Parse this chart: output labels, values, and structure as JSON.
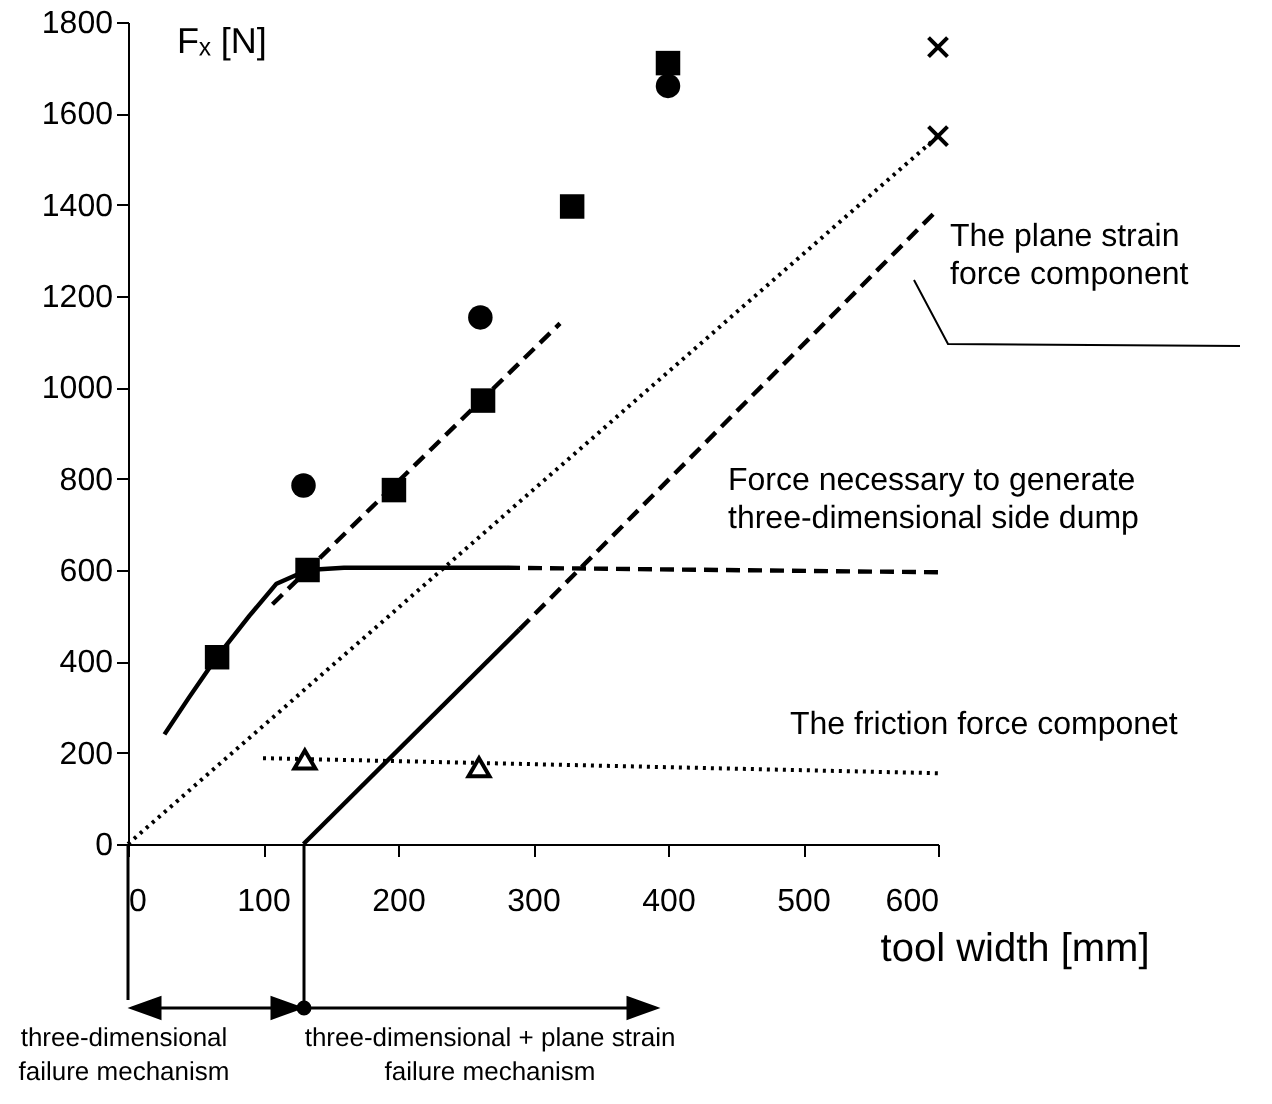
{
  "chart_data": {
    "type": "scatter",
    "xlabel": "tool width [mm]",
    "ylabel": "Fₓ [N]",
    "xlim": [
      0,
      600
    ],
    "ylim": [
      0,
      1800
    ],
    "xticks": [
      0,
      100,
      200,
      300,
      400,
      500,
      600
    ],
    "yticks": [
      0,
      200,
      400,
      600,
      800,
      1000,
      1200,
      1400,
      1600,
      1800
    ],
    "grid": false,
    "annotations": [
      "The plane strain\nforce component",
      "Force necessary to generate\nthree-dimensional side dump",
      "The friction force componet",
      "three-dimensional\nfailure mechanism",
      "three-dimensional + plane strain\nfailure mechanism"
    ],
    "series": [
      {
        "type": "line",
        "color": "#000000",
        "line_style": "solid",
        "x": [
          27,
          45,
          66,
          90,
          110,
          133,
          160,
          200,
          280
        ],
        "values": [
          240,
          320,
          410,
          500,
          570,
          600,
          605,
          605,
          605
        ]
      },
      {
        "type": "line",
        "color": "#000000",
        "line_style": "dashed",
        "x": [
          280,
          600
        ],
        "values": [
          605,
          595
        ]
      },
      {
        "type": "line",
        "color": "#000000",
        "line_style": "dashed",
        "x": [
          107,
          320
        ],
        "values": [
          525,
          1140
        ]
      },
      {
        "type": "line",
        "color": "#000000",
        "line_style": "dotted",
        "x": [
          0,
          600
        ],
        "values": [
          0,
          1550
        ]
      },
      {
        "type": "line",
        "color": "#000000",
        "line_style": "solid",
        "x": [
          130,
          290
        ],
        "values": [
          0,
          470
        ]
      },
      {
        "type": "line",
        "color": "#000000",
        "line_style": "dashed",
        "x": [
          290,
          600
        ],
        "values": [
          470,
          1390
        ]
      },
      {
        "type": "line",
        "color": "#000000",
        "line_style": "dotted",
        "x": [
          100,
          600
        ],
        "values": [
          188,
          155
        ]
      },
      {
        "color": "#000000",
        "marker": "square",
        "x": [
          66,
          133,
          197,
          263,
          329,
          400
        ],
        "values": [
          409,
          600,
          775,
          971,
          1396,
          1710
        ]
      },
      {
        "color": "#000000",
        "marker": "circle",
        "x": [
          130,
          261,
          400
        ],
        "values": [
          785,
          1153,
          1660
        ]
      },
      {
        "color": "#000000",
        "marker": "cross",
        "x": [
          600,
          600
        ],
        "values": [
          1745,
          1550
        ]
      },
      {
        "color": "#000000",
        "marker": "triangle",
        "x": [
          131,
          260
        ],
        "values": [
          185,
          168
        ]
      }
    ]
  }
}
